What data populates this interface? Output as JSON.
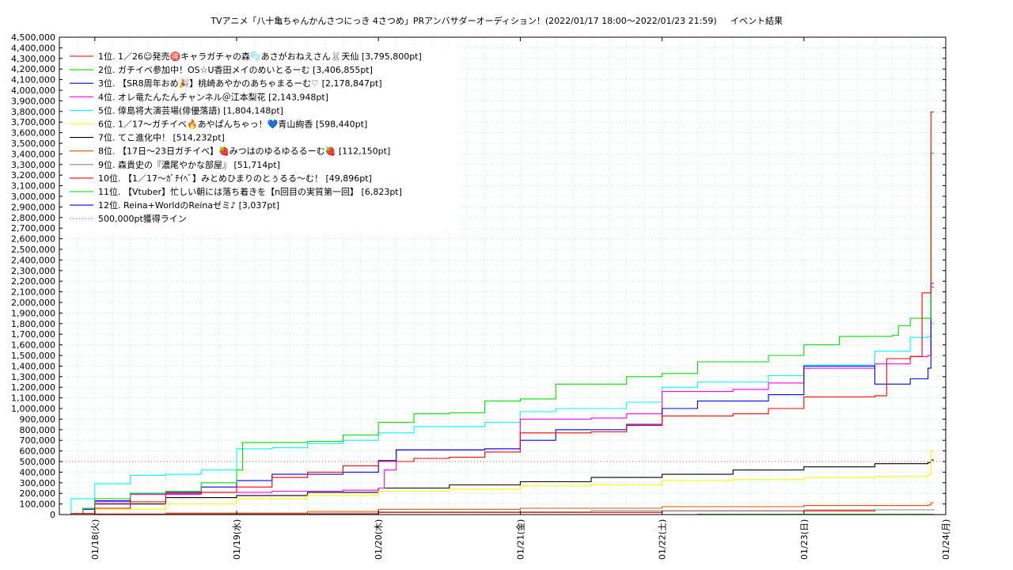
{
  "chart_data": {
    "type": "line",
    "title": "TVアニメ「八十亀ちゃんかんさつにっき 4さつめ」PRアンバサダーオーディション！(2022/01/17 18:00〜2022/01/23 21:59)",
    "subtitle": "イベント結果",
    "xlabel": "",
    "ylabel": "",
    "x_ticks": [
      "01/18(火)",
      "01/19(水)",
      "01/20(木)",
      "01/21(金)",
      "01/22(土)",
      "01/23(日)",
      "01/24(月)"
    ],
    "xlim": [
      "2022-01-17 18:00",
      "2022-01-24 00:00"
    ],
    "ylim": [
      0,
      4500000
    ],
    "y_tick_step": 100000,
    "grid": true,
    "legend_position": "top-left",
    "series": [
      {
        "name": "1位. 1／26☺発売🉐キャラガチャの森🫧あさがおねえさん🐰天仙 [3,795,800pt]",
        "color": "#ff0000",
        "points": [
          [
            "2022-01-17 18:00",
            0
          ],
          [
            "2022-01-17 20:00",
            10000
          ],
          [
            "2022-01-18 00:00",
            60000
          ],
          [
            "2022-01-18 06:00",
            120000
          ],
          [
            "2022-01-18 12:00",
            200000
          ],
          [
            "2022-01-18 18:00",
            210000
          ],
          [
            "2022-01-19 00:00",
            260000
          ],
          [
            "2022-01-19 06:00",
            350000
          ],
          [
            "2022-01-19 12:00",
            400000
          ],
          [
            "2022-01-19 18:00",
            460000
          ],
          [
            "2022-01-20 00:00",
            500000
          ],
          [
            "2022-01-20 06:00",
            530000
          ],
          [
            "2022-01-20 12:00",
            540000
          ],
          [
            "2022-01-20 18:00",
            590000
          ],
          [
            "2022-01-21 00:00",
            770000
          ],
          [
            "2022-01-21 12:00",
            780000
          ],
          [
            "2022-01-21 18:00",
            840000
          ],
          [
            "2022-01-22 00:00",
            930000
          ],
          [
            "2022-01-22 12:00",
            950000
          ],
          [
            "2022-01-22 18:00",
            1000000
          ],
          [
            "2022-01-23 00:00",
            1110000
          ],
          [
            "2022-01-23 12:00",
            1120000
          ],
          [
            "2022-01-23 14:00",
            1470000
          ],
          [
            "2022-01-23 18:00",
            1490000
          ],
          [
            "2022-01-23 20:00",
            2090000
          ],
          [
            "2022-01-23 21:00",
            2090000
          ],
          [
            "2022-01-23 21:30",
            3795800
          ],
          [
            "2022-01-23 21:59",
            3795800
          ]
        ]
      },
      {
        "name": "2位. ガチイベ参加中！OS☆U香田メイのめいとるーむ [3,406,855pt]",
        "color": "#00dd00",
        "points": [
          [
            "2022-01-17 18:00",
            0
          ],
          [
            "2022-01-17 22:00",
            60000
          ],
          [
            "2022-01-18 00:00",
            150000
          ],
          [
            "2022-01-18 06:00",
            200000
          ],
          [
            "2022-01-18 12:00",
            220000
          ],
          [
            "2022-01-18 18:00",
            300000
          ],
          [
            "2022-01-19 00:00",
            420000
          ],
          [
            "2022-01-19 01:00",
            680000
          ],
          [
            "2022-01-19 12:00",
            690000
          ],
          [
            "2022-01-19 18:00",
            750000
          ],
          [
            "2022-01-20 00:00",
            870000
          ],
          [
            "2022-01-20 06:00",
            950000
          ],
          [
            "2022-01-20 12:00",
            960000
          ],
          [
            "2022-01-20 18:00",
            1070000
          ],
          [
            "2022-01-21 00:00",
            1090000
          ],
          [
            "2022-01-21 06:00",
            1230000
          ],
          [
            "2022-01-21 18:00",
            1300000
          ],
          [
            "2022-01-22 00:00",
            1330000
          ],
          [
            "2022-01-22 06:00",
            1440000
          ],
          [
            "2022-01-22 18:00",
            1500000
          ],
          [
            "2022-01-23 00:00",
            1600000
          ],
          [
            "2022-01-23 06:00",
            1680000
          ],
          [
            "2022-01-23 15:00",
            1690000
          ],
          [
            "2022-01-23 16:00",
            1780000
          ],
          [
            "2022-01-23 18:00",
            1850000
          ],
          [
            "2022-01-23 21:00",
            1850000
          ],
          [
            "2022-01-23 21:30",
            3406855
          ],
          [
            "2022-01-23 21:59",
            3406855
          ]
        ]
      },
      {
        "name": "3位. 【SR8周年おめ🎉】桃崎あやかのあちゃまるーむ♡ [2,178,847pt]",
        "color": "#0000ff",
        "points": [
          [
            "2022-01-17 18:00",
            0
          ],
          [
            "2022-01-17 22:00",
            50000
          ],
          [
            "2022-01-18 00:00",
            130000
          ],
          [
            "2022-01-18 06:00",
            200000
          ],
          [
            "2022-01-18 12:00",
            210000
          ],
          [
            "2022-01-18 18:00",
            260000
          ],
          [
            "2022-01-19 00:00",
            320000
          ],
          [
            "2022-01-19 06:00",
            380000
          ],
          [
            "2022-01-19 18:00",
            400000
          ],
          [
            "2022-01-20 00:00",
            510000
          ],
          [
            "2022-01-20 03:00",
            610000
          ],
          [
            "2022-01-20 18:00",
            620000
          ],
          [
            "2022-01-21 00:00",
            700000
          ],
          [
            "2022-01-21 06:00",
            800000
          ],
          [
            "2022-01-21 18:00",
            850000
          ],
          [
            "2022-01-22 00:00",
            1000000
          ],
          [
            "2022-01-22 06:00",
            1070000
          ],
          [
            "2022-01-22 18:00",
            1130000
          ],
          [
            "2022-01-23 00:00",
            1400000
          ],
          [
            "2022-01-23 12:00",
            1230000
          ],
          [
            "2022-01-23 18:00",
            1280000
          ],
          [
            "2022-01-23 21:00",
            1380000
          ],
          [
            "2022-01-23 21:30",
            2178847
          ],
          [
            "2022-01-23 21:59",
            2178847
          ]
        ]
      },
      {
        "name": "4位. オレ竜たんたんチャンネル＠江本梨花 [2,143,948pt]",
        "color": "#ff00ff",
        "points": [
          [
            "2022-01-17 18:00",
            0
          ],
          [
            "2022-01-18 00:00",
            120000
          ],
          [
            "2022-01-18 06:00",
            190000
          ],
          [
            "2022-01-18 18:00",
            210000
          ],
          [
            "2022-01-19 06:00",
            220000
          ],
          [
            "2022-01-19 18:00",
            230000
          ],
          [
            "2022-01-20 00:00",
            250000
          ],
          [
            "2022-01-20 01:00",
            420000
          ],
          [
            "2022-01-20 03:00",
            610000
          ],
          [
            "2022-01-20 18:00",
            620000
          ],
          [
            "2022-01-21 00:00",
            900000
          ],
          [
            "2022-01-21 12:00",
            910000
          ],
          [
            "2022-01-21 18:00",
            950000
          ],
          [
            "2022-01-22 00:00",
            1160000
          ],
          [
            "2022-01-22 12:00",
            1180000
          ],
          [
            "2022-01-22 18:00",
            1240000
          ],
          [
            "2022-01-23 00:00",
            1380000
          ],
          [
            "2022-01-23 12:00",
            1420000
          ],
          [
            "2022-01-23 18:00",
            1490000
          ],
          [
            "2022-01-23 21:00",
            1500000
          ],
          [
            "2022-01-23 21:30",
            2143948
          ],
          [
            "2022-01-23 21:59",
            2143948
          ]
        ]
      },
      {
        "name": "5位. 倖島将大演芸場(俳優落語) [1,804,148pt]",
        "color": "#00ffff",
        "points": [
          [
            "2022-01-17 18:00",
            0
          ],
          [
            "2022-01-17 20:00",
            150000
          ],
          [
            "2022-01-18 00:00",
            290000
          ],
          [
            "2022-01-18 06:00",
            370000
          ],
          [
            "2022-01-18 12:00",
            380000
          ],
          [
            "2022-01-18 18:00",
            420000
          ],
          [
            "2022-01-19 00:00",
            620000
          ],
          [
            "2022-01-19 06:00",
            630000
          ],
          [
            "2022-01-19 12:00",
            670000
          ],
          [
            "2022-01-19 18:00",
            700000
          ],
          [
            "2022-01-20 00:00",
            770000
          ],
          [
            "2022-01-20 06:00",
            830000
          ],
          [
            "2022-01-20 18:00",
            870000
          ],
          [
            "2022-01-21 00:00",
            970000
          ],
          [
            "2022-01-21 06:00",
            1000000
          ],
          [
            "2022-01-21 18:00",
            1060000
          ],
          [
            "2022-01-22 00:00",
            1200000
          ],
          [
            "2022-01-22 06:00",
            1250000
          ],
          [
            "2022-01-22 18:00",
            1310000
          ],
          [
            "2022-01-23 00:00",
            1410000
          ],
          [
            "2022-01-23 12:00",
            1540000
          ],
          [
            "2022-01-23 18:00",
            1670000
          ],
          [
            "2022-01-23 21:00",
            1680000
          ],
          [
            "2022-01-23 21:30",
            1804148
          ],
          [
            "2022-01-23 21:59",
            1804148
          ]
        ]
      },
      {
        "name": "6位. 1／17〜ガチイベ🔥あやぱんちゃっ！💙青山絢香 [598,440pt]",
        "color": "#ffff00",
        "points": [
          [
            "2022-01-17 18:00",
            0
          ],
          [
            "2022-01-18 00:00",
            50000
          ],
          [
            "2022-01-18 12:00",
            100000
          ],
          [
            "2022-01-19 00:00",
            150000
          ],
          [
            "2022-01-19 12:00",
            180000
          ],
          [
            "2022-01-20 00:00",
            220000
          ],
          [
            "2022-01-20 12:00",
            240000
          ],
          [
            "2022-01-21 00:00",
            270000
          ],
          [
            "2022-01-21 12:00",
            280000
          ],
          [
            "2022-01-22 00:00",
            320000
          ],
          [
            "2022-01-22 12:00",
            330000
          ],
          [
            "2022-01-23 00:00",
            350000
          ],
          [
            "2022-01-23 12:00",
            360000
          ],
          [
            "2022-01-23 21:00",
            380000
          ],
          [
            "2022-01-23 21:30",
            598440
          ],
          [
            "2022-01-23 21:59",
            598440
          ]
        ]
      },
      {
        "name": "7位. てこ進化中！ [514,232pt]",
        "color": "#000000",
        "points": [
          [
            "2022-01-17 18:00",
            0
          ],
          [
            "2022-01-17 22:00",
            60000
          ],
          [
            "2022-01-18 00:00",
            100000
          ],
          [
            "2022-01-18 12:00",
            160000
          ],
          [
            "2022-01-19 00:00",
            180000
          ],
          [
            "2022-01-19 12:00",
            210000
          ],
          [
            "2022-01-20 00:00",
            250000
          ],
          [
            "2022-01-20 12:00",
            280000
          ],
          [
            "2022-01-21 00:00",
            310000
          ],
          [
            "2022-01-21 12:00",
            350000
          ],
          [
            "2022-01-22 00:00",
            380000
          ],
          [
            "2022-01-22 12:00",
            420000
          ],
          [
            "2022-01-23 00:00",
            450000
          ],
          [
            "2022-01-23 12:00",
            480000
          ],
          [
            "2022-01-23 21:00",
            490000
          ],
          [
            "2022-01-23 21:30",
            514232
          ],
          [
            "2022-01-23 21:59",
            514232
          ]
        ]
      },
      {
        "name": "8位. 【17日〜23日ガチイベ】🍓みつはのゆるゆるるーむ🍓 [112,150pt]",
        "color": "#e05000",
        "points": [
          [
            "2022-01-17 18:00",
            0
          ],
          [
            "2022-01-18 12:00",
            10000
          ],
          [
            "2022-01-19 12:00",
            30000
          ],
          [
            "2022-01-20 00:00",
            50000
          ],
          [
            "2022-01-21 00:00",
            60000
          ],
          [
            "2022-01-22 00:00",
            75000
          ],
          [
            "2022-01-23 00:00",
            85000
          ],
          [
            "2022-01-23 21:00",
            90000
          ],
          [
            "2022-01-23 21:30",
            112150
          ],
          [
            "2022-01-23 21:59",
            112150
          ]
        ]
      },
      {
        "name": "9位. 森貴史の『濃尾やかな部屋』 [51,714pt]",
        "color": "#888888",
        "points": [
          [
            "2022-01-17 18:00",
            0
          ],
          [
            "2022-01-18 12:00",
            15000
          ],
          [
            "2022-01-20 00:00",
            25000
          ],
          [
            "2022-01-21 12:00",
            35000
          ],
          [
            "2022-01-23 00:00",
            45000
          ],
          [
            "2022-01-23 21:59",
            51714
          ]
        ]
      },
      {
        "name": "10位. 【1／17〜ｶﾞﾁｲﾍﾞ】みとめひまりのとぅるる〜む！ [49,896pt]",
        "color": "#ff0000",
        "points": [
          [
            "2022-01-17 18:00",
            0
          ],
          [
            "2022-01-18 00:00",
            5000
          ],
          [
            "2022-01-20 00:00",
            20000
          ],
          [
            "2022-01-22 00:00",
            35000
          ],
          [
            "2022-01-23 12:00",
            45000
          ],
          [
            "2022-01-23 21:59",
            49896
          ]
        ]
      },
      {
        "name": "11位. 【Vtuber】忙しい朝には落ち着きを【n回目の実質第一回】 [6,823pt]",
        "color": "#00dd00",
        "points": [
          [
            "2022-01-17 18:00",
            0
          ],
          [
            "2022-01-22 06:00",
            3000
          ],
          [
            "2022-01-23 21:59",
            6823
          ]
        ]
      },
      {
        "name": "12位. Reina+WorldのReinaゼミ♪ [3,037pt]",
        "color": "#0000ff",
        "points": [
          [
            "2022-01-17 18:00",
            0
          ],
          [
            "2022-01-23 21:59",
            3037
          ]
        ]
      }
    ],
    "reference_line": {
      "name": "500,000pt獲得ライン",
      "value": 500000,
      "color": "#dd4444"
    }
  }
}
